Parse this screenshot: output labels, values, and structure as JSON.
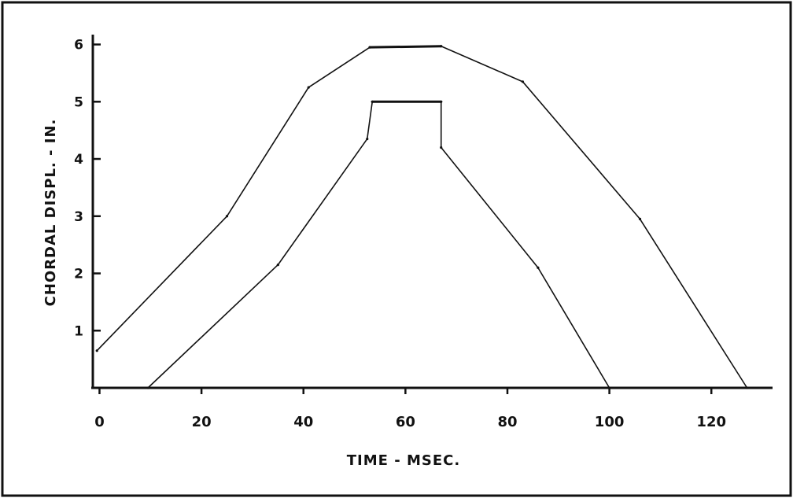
{
  "chart_data": {
    "type": "line",
    "title": "",
    "xlabel": "TIME - MSEC.",
    "ylabel": "CHORDAL DISPL. - IN.",
    "xlim": [
      -1,
      132
    ],
    "ylim": [
      0,
      6.2
    ],
    "xticks": [
      0,
      20,
      40,
      60,
      80,
      100,
      120
    ],
    "xtick_labels": [
      "0",
      "20",
      "40",
      "60",
      "80",
      "100",
      "120"
    ],
    "yticks": [
      1,
      2,
      3,
      4,
      5,
      6
    ],
    "ytick_labels": [
      "1",
      "2",
      "3",
      "4",
      "5",
      "6"
    ],
    "grid": false,
    "legend": "none",
    "series": [
      {
        "x": [
          -0.5,
          25,
          41,
          53,
          67,
          83,
          106,
          127
        ],
        "y": [
          0.65,
          3.0,
          5.25,
          5.95,
          5.97,
          5.35,
          2.95,
          0.0
        ]
      },
      {
        "x": [
          9.5,
          35,
          52.5,
          53.5,
          67,
          67,
          86,
          100
        ],
        "y": [
          0.0,
          2.15,
          4.35,
          5.0,
          5.0,
          4.2,
          2.1,
          0.0
        ]
      }
    ]
  }
}
